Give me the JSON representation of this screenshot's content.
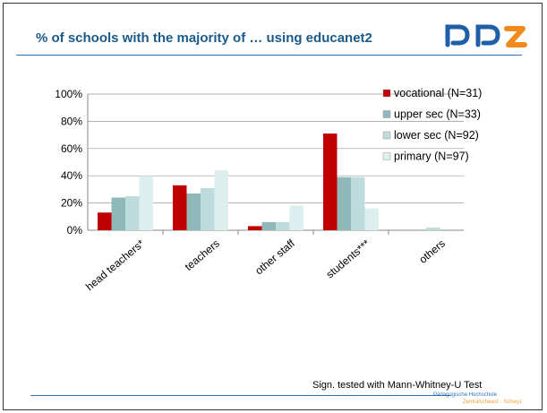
{
  "slide": {
    "title": "% of schools with the majority of … using educanet2",
    "footer_note": "Sign. tested with Mann-Whitney-U Test",
    "brand_line1": "Pädagogische Hochschule",
    "brand_line2": "Zentralschweiz · Schwyz",
    "logo_colors": {
      "blue": "#1f5fa8",
      "orange": "#f08a1c"
    }
  },
  "chart_data": {
    "type": "bar",
    "categories": [
      "head teachers*",
      "teachers",
      "other staff",
      "students***",
      "others"
    ],
    "series": [
      {
        "name": "vocational (N=31)",
        "color": "#c00000",
        "values": [
          13,
          33,
          3,
          71,
          0
        ]
      },
      {
        "name": "upper sec (N=33)",
        "color": "#8fb8b8",
        "values": [
          24,
          27,
          6,
          39,
          0
        ]
      },
      {
        "name": "lower sec (N=92)",
        "color": "#bfdcdc",
        "values": [
          25,
          31,
          6,
          39,
          2
        ]
      },
      {
        "name": "primary (N=97)",
        "color": "#dceeee",
        "values": [
          40,
          44,
          18,
          16,
          0
        ]
      }
    ],
    "yticks": [
      "0%",
      "20%",
      "40%",
      "60%",
      "80%",
      "100%"
    ],
    "ylim": [
      0,
      100
    ],
    "grid": true,
    "legend": "top-right"
  }
}
